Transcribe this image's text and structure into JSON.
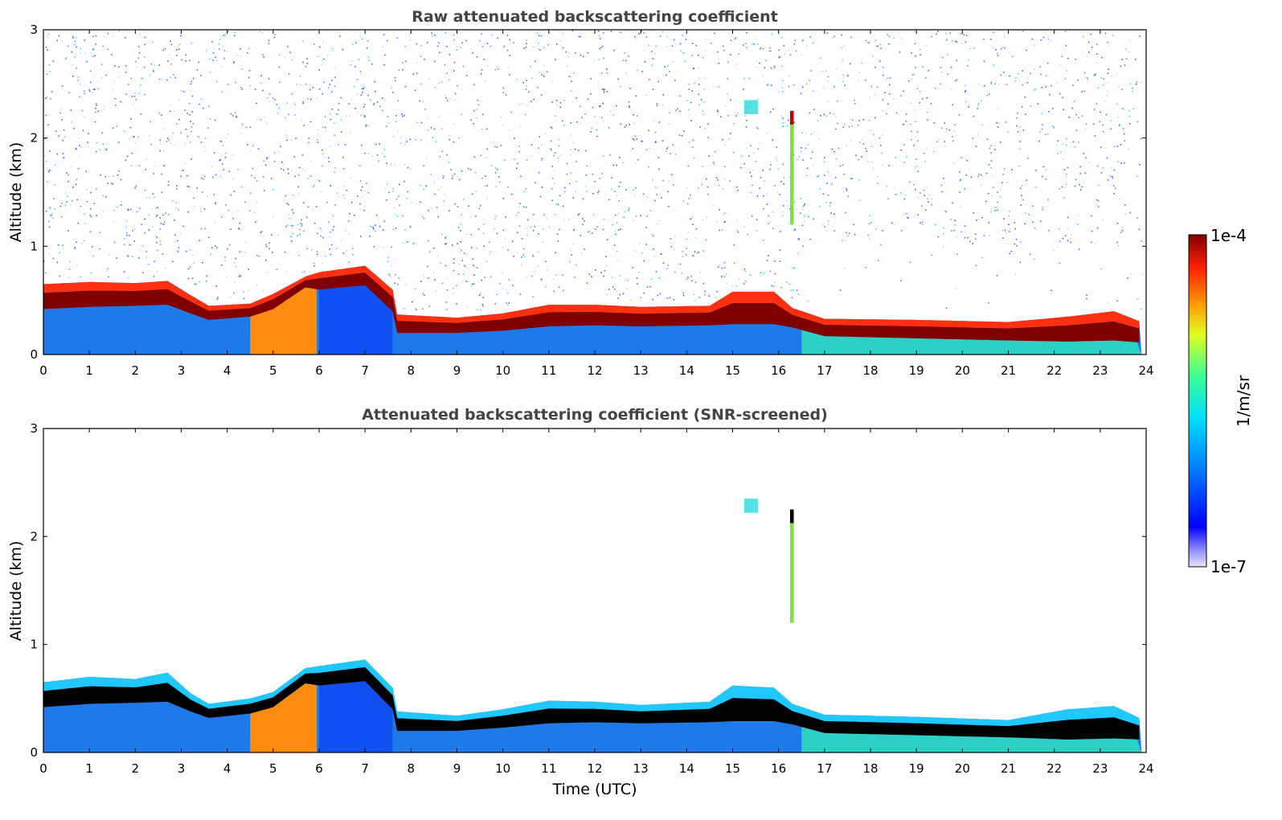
{
  "chart_data": [
    {
      "type": "heatmap",
      "title": "Raw attenuated backscattering coefficient",
      "xlabel": "",
      "ylabel": "Altitude (km)",
      "xlim": [
        0,
        24
      ],
      "ylim": [
        0,
        3
      ],
      "x_ticks": [
        "0",
        "1",
        "2",
        "3",
        "4",
        "5",
        "6",
        "7",
        "8",
        "9",
        "10",
        "11",
        "12",
        "13",
        "14",
        "15",
        "16",
        "17",
        "18",
        "19",
        "20",
        "21",
        "22",
        "23",
        "24"
      ],
      "y_ticks": [
        "0",
        "1",
        "2",
        "3"
      ],
      "noise_above_layer": true,
      "layer_top_km": [
        [
          0.0,
          0.65
        ],
        [
          1.0,
          0.67
        ],
        [
          2.0,
          0.66
        ],
        [
          2.7,
          0.68
        ],
        [
          3.2,
          0.55
        ],
        [
          3.6,
          0.45
        ],
        [
          4.5,
          0.47
        ],
        [
          5.0,
          0.56
        ],
        [
          5.7,
          0.72
        ],
        [
          6.0,
          0.76
        ],
        [
          7.0,
          0.82
        ],
        [
          7.6,
          0.6
        ],
        [
          7.7,
          0.37
        ],
        [
          9.0,
          0.34
        ],
        [
          10.0,
          0.38
        ],
        [
          11.0,
          0.46
        ],
        [
          12.0,
          0.46
        ],
        [
          13.0,
          0.44
        ],
        [
          14.5,
          0.45
        ],
        [
          15.0,
          0.58
        ],
        [
          15.9,
          0.58
        ],
        [
          16.3,
          0.43
        ],
        [
          17.0,
          0.33
        ],
        [
          19.0,
          0.32
        ],
        [
          21.0,
          0.3
        ],
        [
          22.3,
          0.35
        ],
        [
          23.3,
          0.4
        ],
        [
          23.9,
          0.3
        ]
      ],
      "core_bottom_km": [
        [
          0.0,
          0.42
        ],
        [
          1.0,
          0.44
        ],
        [
          2.0,
          0.45
        ],
        [
          2.7,
          0.46
        ],
        [
          3.2,
          0.38
        ],
        [
          3.6,
          0.32
        ],
        [
          4.5,
          0.35
        ],
        [
          5.0,
          0.42
        ],
        [
          5.7,
          0.62
        ],
        [
          6.0,
          0.6
        ],
        [
          7.0,
          0.64
        ],
        [
          7.6,
          0.4
        ],
        [
          7.7,
          0.2
        ],
        [
          9.0,
          0.2
        ],
        [
          10.0,
          0.22
        ],
        [
          11.0,
          0.26
        ],
        [
          12.0,
          0.27
        ],
        [
          13.0,
          0.26
        ],
        [
          14.5,
          0.27
        ],
        [
          15.0,
          0.28
        ],
        [
          15.9,
          0.28
        ],
        [
          16.3,
          0.25
        ],
        [
          17.0,
          0.17
        ],
        [
          19.0,
          0.15
        ],
        [
          21.0,
          0.13
        ],
        [
          22.3,
          0.12
        ],
        [
          23.3,
          0.13
        ],
        [
          23.9,
          0.11
        ]
      ],
      "overlays": [
        {
          "x": [
            16.25,
            16.33
          ],
          "y": [
            1.2,
            2.25
          ],
          "level": "yellow-green"
        },
        {
          "x": [
            15.25,
            15.55
          ],
          "y": [
            2.22,
            2.35
          ],
          "level": "cyan"
        }
      ]
    },
    {
      "type": "heatmap",
      "title": "Attenuated backscattering coefficient (SNR-screened)",
      "xlabel": "Time (UTC)",
      "ylabel": "Altitude (km)",
      "xlim": [
        0,
        24
      ],
      "ylim": [
        0,
        3
      ],
      "x_ticks": [
        "0",
        "1",
        "2",
        "3",
        "4",
        "5",
        "6",
        "7",
        "8",
        "9",
        "10",
        "11",
        "12",
        "13",
        "14",
        "15",
        "16",
        "17",
        "18",
        "19",
        "20",
        "21",
        "22",
        "23",
        "24"
      ],
      "y_ticks": [
        "0",
        "1",
        "2",
        "3"
      ],
      "noise_above_layer": false,
      "layer_top_km": [
        [
          0.0,
          0.65
        ],
        [
          1.0,
          0.7
        ],
        [
          2.0,
          0.68
        ],
        [
          2.7,
          0.74
        ],
        [
          3.2,
          0.55
        ],
        [
          3.6,
          0.45
        ],
        [
          4.5,
          0.5
        ],
        [
          5.0,
          0.56
        ],
        [
          5.7,
          0.78
        ],
        [
          6.0,
          0.8
        ],
        [
          7.0,
          0.86
        ],
        [
          7.6,
          0.6
        ],
        [
          7.7,
          0.38
        ],
        [
          9.0,
          0.34
        ],
        [
          10.0,
          0.4
        ],
        [
          11.0,
          0.48
        ],
        [
          12.0,
          0.47
        ],
        [
          13.0,
          0.44
        ],
        [
          14.5,
          0.47
        ],
        [
          15.0,
          0.62
        ],
        [
          15.9,
          0.6
        ],
        [
          16.3,
          0.45
        ],
        [
          17.0,
          0.35
        ],
        [
          19.0,
          0.33
        ],
        [
          21.0,
          0.3
        ],
        [
          22.3,
          0.4
        ],
        [
          23.3,
          0.43
        ],
        [
          23.9,
          0.31
        ]
      ],
      "core_bottom_km": [
        [
          0.0,
          0.42
        ],
        [
          1.0,
          0.45
        ],
        [
          2.0,
          0.46
        ],
        [
          2.7,
          0.47
        ],
        [
          3.2,
          0.38
        ],
        [
          3.6,
          0.32
        ],
        [
          4.5,
          0.36
        ],
        [
          5.0,
          0.42
        ],
        [
          5.7,
          0.64
        ],
        [
          6.0,
          0.62
        ],
        [
          7.0,
          0.66
        ],
        [
          7.6,
          0.4
        ],
        [
          7.7,
          0.2
        ],
        [
          9.0,
          0.2
        ],
        [
          10.0,
          0.23
        ],
        [
          11.0,
          0.27
        ],
        [
          12.0,
          0.28
        ],
        [
          13.0,
          0.27
        ],
        [
          14.5,
          0.28
        ],
        [
          15.0,
          0.29
        ],
        [
          15.9,
          0.29
        ],
        [
          16.3,
          0.26
        ],
        [
          17.0,
          0.18
        ],
        [
          19.0,
          0.16
        ],
        [
          21.0,
          0.14
        ],
        [
          22.3,
          0.12
        ],
        [
          23.3,
          0.13
        ],
        [
          23.9,
          0.12
        ]
      ],
      "overlays": [
        {
          "x": [
            16.25,
            16.33
          ],
          "y": [
            1.2,
            2.25
          ],
          "level": "mixed"
        },
        {
          "x": [
            15.25,
            15.55
          ],
          "y": [
            2.22,
            2.35
          ],
          "level": "cyan"
        }
      ]
    }
  ],
  "colorbar": {
    "label": "1/m/sr",
    "max_label": "1e-4",
    "min_label": "1e-7",
    "colormap": "jet",
    "scale": "log",
    "range": [
      "1e-7",
      "1e-4"
    ]
  },
  "colors": {
    "saturated_core_raw": "#7f0000",
    "saturated_core_screened": "#000000",
    "boundary_layer_fill": "#1e7ae8",
    "noise_blue": "#0033ff",
    "noise_cyan": "#00c8ff",
    "title_gray": "#444444"
  }
}
